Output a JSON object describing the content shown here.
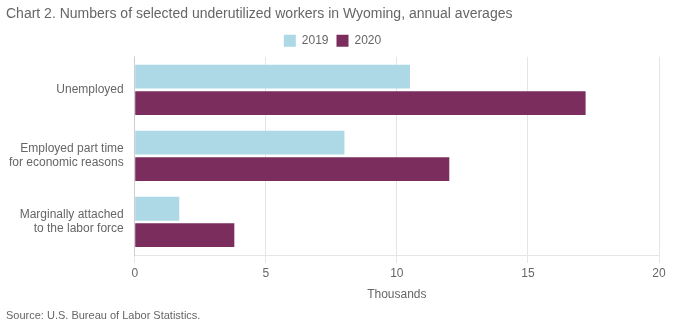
{
  "chart_data": {
    "type": "bar",
    "orientation": "horizontal",
    "title": "Chart 2. Numbers of selected underutilized workers in Wyoming, annual averages",
    "annotations": [
      "Source: U.S. Bureau of Labor Statistics."
    ],
    "categories": [
      "Marginally attached\nto the labor force",
      "Employed part time\nfor economic reasons",
      "Unemployed"
    ],
    "series": [
      {
        "name": "2019",
        "color": "#add8e6",
        "values": [
          1.7,
          8.0,
          10.5
        ]
      },
      {
        "name": "2020",
        "color": "#7b2d5e",
        "values": [
          3.8,
          12.0,
          17.2
        ]
      }
    ],
    "x_label": "Thousands",
    "xlim": [
      0,
      20
    ],
    "xticks": [
      0,
      5,
      10,
      15,
      20
    ],
    "grid": true,
    "legend": "top"
  }
}
